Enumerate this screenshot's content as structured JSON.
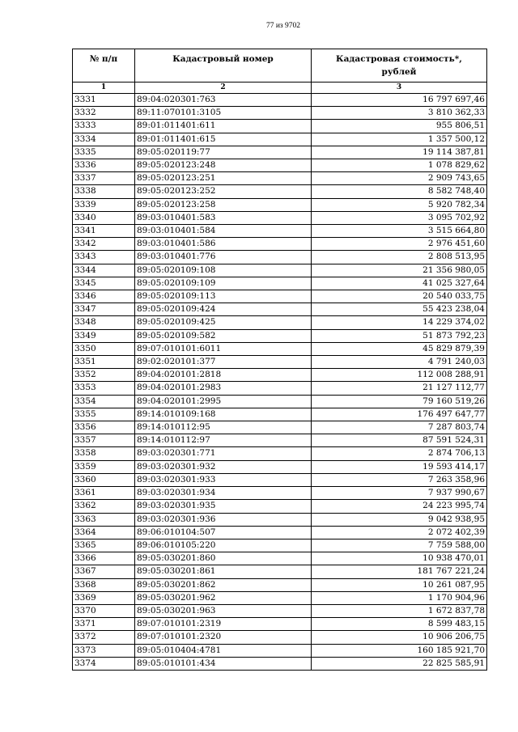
{
  "page_indicator": "77 из 9702",
  "table": {
    "headers": [
      "№ п/п",
      "Кадастровый номер",
      "Кадастровая стоимость*,\nрублей"
    ],
    "column_numbers": [
      "1",
      "2",
      "3"
    ],
    "rows": [
      [
        "3331",
        "89:04:020301:763",
        "16 797 697,46"
      ],
      [
        "3332",
        "89:11:070101:3105",
        "3 810 362,33"
      ],
      [
        "3333",
        "89:01:011401:611",
        "955 806,51"
      ],
      [
        "3334",
        "89:01:011401:615",
        "1 357 500,12"
      ],
      [
        "3335",
        "89:05:020119:77",
        "19 114 387,81"
      ],
      [
        "3336",
        "89:05:020123:248",
        "1 078 829,62"
      ],
      [
        "3337",
        "89:05:020123:251",
        "2 909 743,65"
      ],
      [
        "3338",
        "89:05:020123:252",
        "8 582 748,40"
      ],
      [
        "3339",
        "89:05:020123:258",
        "5 920 782,34"
      ],
      [
        "3340",
        "89:03:010401:583",
        "3 095 702,92"
      ],
      [
        "3341",
        "89:03:010401:584",
        "3 515 664,80"
      ],
      [
        "3342",
        "89:03:010401:586",
        "2 976 451,60"
      ],
      [
        "3343",
        "89:03:010401:776",
        "2 808 513,95"
      ],
      [
        "3344",
        "89:05:020109:108",
        "21 356 980,05"
      ],
      [
        "3345",
        "89:05:020109:109",
        "41 025 327,64"
      ],
      [
        "3346",
        "89:05:020109:113",
        "20 540 033,75"
      ],
      [
        "3347",
        "89:05:020109:424",
        "55 423 238,04"
      ],
      [
        "3348",
        "89:05:020109:425",
        "14 229 374,02"
      ],
      [
        "3349",
        "89:05:020109:582",
        "51 873 792,23"
      ],
      [
        "3350",
        "89:07:010101:6011",
        "45 829 879,39"
      ],
      [
        "3351",
        "89:02:020101:377",
        "4 791 240,03"
      ],
      [
        "3352",
        "89:04:020101:2818",
        "112 008 288,91"
      ],
      [
        "3353",
        "89:04:020101:2983",
        "21 127 112,77"
      ],
      [
        "3354",
        "89:04:020101:2995",
        "79 160 519,26"
      ],
      [
        "3355",
        "89:14:010109:168",
        "176 497 647,77"
      ],
      [
        "3356",
        "89:14:010112:95",
        "7 287 803,74"
      ],
      [
        "3357",
        "89:14:010112:97",
        "87 591 524,31"
      ],
      [
        "3358",
        "89:03:020301:771",
        "2 874 706,13"
      ],
      [
        "3359",
        "89:03:020301:932",
        "19 593 414,17"
      ],
      [
        "3360",
        "89:03:020301:933",
        "7 263 358,96"
      ],
      [
        "3361",
        "89:03:020301:934",
        "7 937 990,67"
      ],
      [
        "3362",
        "89:03:020301:935",
        "24 223 995,74"
      ],
      [
        "3363",
        "89:03:020301:936",
        "9 042 938,95"
      ],
      [
        "3364",
        "89:06:010104:507",
        "2 072 402,39"
      ],
      [
        "3365",
        "89:06:010105:220",
        "7 759 588,00"
      ],
      [
        "3366",
        "89:05:030201:860",
        "10 938 470,01"
      ],
      [
        "3367",
        "89:05:030201:861",
        "181 767 221,24"
      ],
      [
        "3368",
        "89:05:030201:862",
        "10 261 087,95"
      ],
      [
        "3369",
        "89:05:030201:962",
        "1 170 904,96"
      ],
      [
        "3370",
        "89:05:030201:963",
        "1 672 837,78"
      ],
      [
        "3371",
        "89:07:010101:2319",
        "8 599 483,15"
      ],
      [
        "3372",
        "89:07:010101:2320",
        "10 906 206,75"
      ],
      [
        "3373",
        "89:05:010404:4781",
        "160 185 921,70"
      ],
      [
        "3374",
        "89:05:010101:434",
        "22 825 585,91"
      ]
    ]
  }
}
